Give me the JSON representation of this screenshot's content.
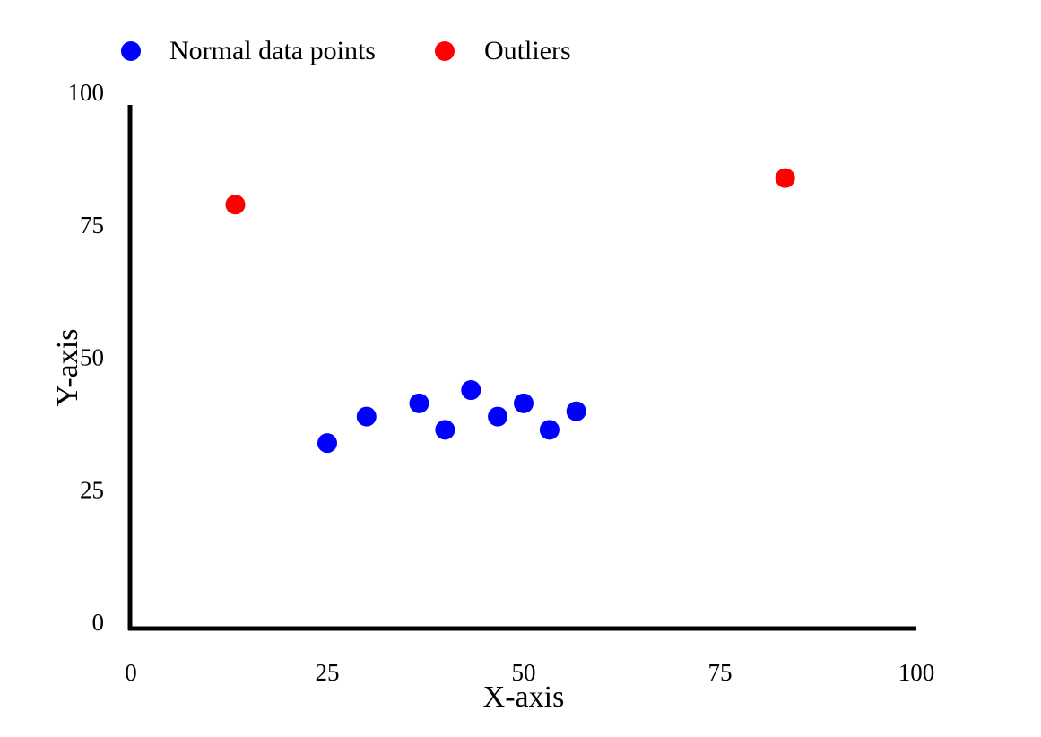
{
  "chart_data": {
    "type": "scatter",
    "title": "",
    "xlabel": "X-axis",
    "ylabel": "Y-axis",
    "xlim": [
      0,
      100
    ],
    "ylim": [
      0,
      100
    ],
    "xticks": [
      "0",
      "25",
      "50",
      "75",
      "100"
    ],
    "yticks": [
      "0",
      "25",
      "50",
      "75",
      "100"
    ],
    "grid": false,
    "legend_position": "top-left",
    "series": [
      {
        "name": "Normal data points",
        "color": "#0000ff",
        "points": [
          {
            "x": 25,
            "y": 35
          },
          {
            "x": 30,
            "y": 40
          },
          {
            "x": 36.7,
            "y": 42.5
          },
          {
            "x": 40,
            "y": 37.5
          },
          {
            "x": 43.3,
            "y": 45
          },
          {
            "x": 46.7,
            "y": 40
          },
          {
            "x": 50,
            "y": 42.5
          },
          {
            "x": 53.3,
            "y": 37.5
          },
          {
            "x": 56.7,
            "y": 41
          }
        ]
      },
      {
        "name": "Outliers",
        "color": "#ff0000",
        "points": [
          {
            "x": 13.3,
            "y": 80
          },
          {
            "x": 83.3,
            "y": 85
          }
        ]
      }
    ]
  }
}
